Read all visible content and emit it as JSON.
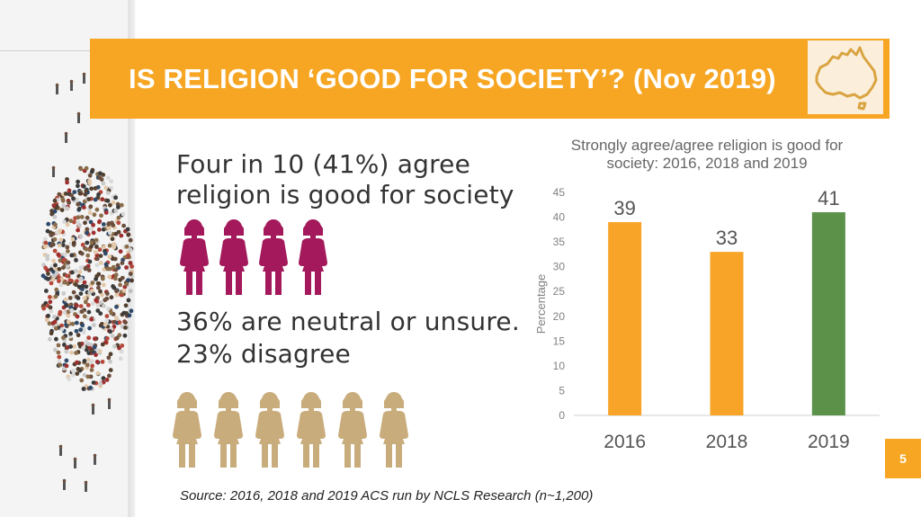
{
  "slide": {
    "title": "IS RELIGION ‘GOOD FOR SOCIETY’? (Nov 2019)",
    "headline_line1": "Four in 10 (41%) agree",
    "headline_line2": "religion is good for society",
    "neutral_line": "36% are neutral or unsure.",
    "disagree_line": "23% disagree",
    "source": "Source: 2016, 2018 and 2019 ACS run by NCLS Research (n~1,200)",
    "page_number": "5",
    "agree_icon_count": 4,
    "other_icon_count": 6
  },
  "colors": {
    "banner": "#f6a623",
    "agree_figure": "#a3195b",
    "other_figure": "#c9ac7c",
    "bar_orange": "#f7a428",
    "bar_green": "#5b9148"
  },
  "icons": [
    "australia-map-icon",
    "person-icon",
    "crowd-image"
  ],
  "chart_data": {
    "type": "bar",
    "title": "Strongly agree/agree religion is good for society: 2016, 2018 and 2019",
    "categories": [
      "2016",
      "2018",
      "2019"
    ],
    "values": [
      39,
      33,
      41
    ],
    "data_labels": [
      "39",
      "33",
      "41"
    ],
    "bar_colors": [
      "#f7a428",
      "#f7a428",
      "#5b9148"
    ],
    "ylabel": "Percentage",
    "xlabel": "",
    "ylim": [
      0,
      45
    ],
    "yticks": [
      0,
      5,
      10,
      15,
      20,
      25,
      30,
      35,
      40,
      45
    ],
    "grid": false
  }
}
